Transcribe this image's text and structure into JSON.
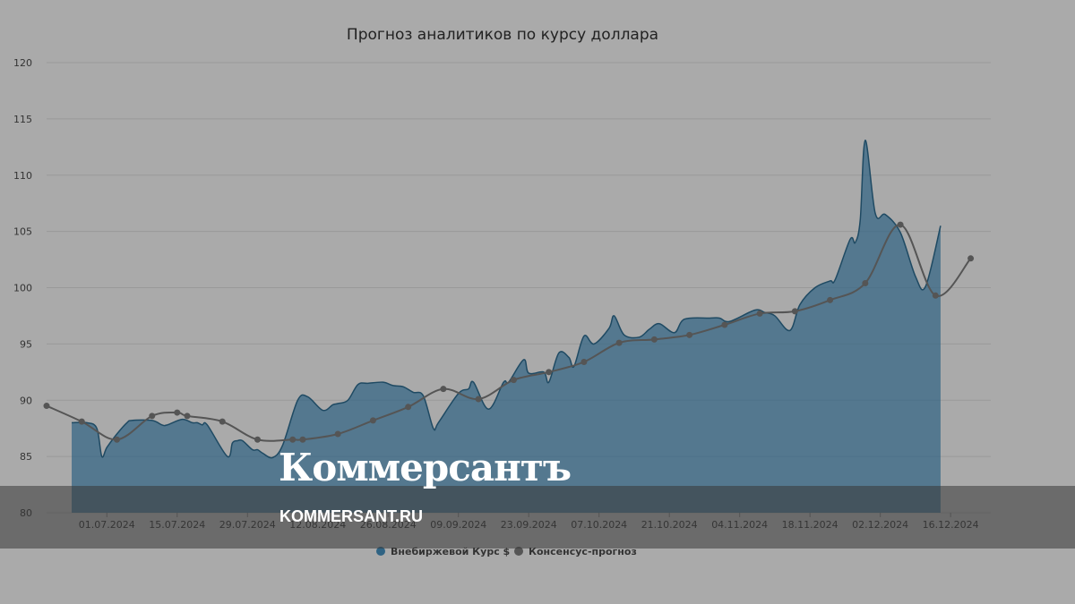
{
  "chart_data": {
    "type": "area",
    "title": "Прогноз аналитиков по курсу доллара",
    "ylim": [
      80,
      120
    ],
    "yticks": [
      80,
      85,
      90,
      95,
      100,
      105,
      110,
      115,
      120
    ],
    "xlim": [
      "2024-06-19",
      "2024-12-24"
    ],
    "xticks": [
      "2024-07-01",
      "2024-07-15",
      "2024-07-29",
      "2024-08-12",
      "2024-08-26",
      "2024-09-09",
      "2024-09-23",
      "2024-10-07",
      "2024-10-21",
      "2024-11-04",
      "2024-11-18",
      "2024-12-02",
      "2024-12-16"
    ],
    "xtick_labels": [
      "01.07.2024",
      "15.07.2024",
      "29.07.2024",
      "12.08.2024",
      "26.08.2024",
      "09.09.2024",
      "23.09.2024",
      "07.10.2024",
      "21.10.2024",
      "04.11.2024",
      "18.11.2024",
      "02.12.2024",
      "16.12.2024"
    ],
    "grid": true,
    "legend_position": "bottom-center",
    "series": [
      {
        "name": "Внебиржевой Курс $",
        "type": "area",
        "color": "#2f6383",
        "x": [
          "2024-06-24",
          "2024-06-27",
          "2024-06-29",
          "2024-06-30",
          "2024-07-01",
          "2024-07-03",
          "2024-07-05",
          "2024-07-06",
          "2024-07-10",
          "2024-07-12",
          "2024-07-13",
          "2024-07-16",
          "2024-07-18",
          "2024-07-19",
          "2024-07-20",
          "2024-07-21",
          "2024-07-25",
          "2024-07-26",
          "2024-07-27",
          "2024-07-28",
          "2024-07-30",
          "2024-07-31",
          "2024-08-01",
          "2024-08-03",
          "2024-08-05",
          "2024-08-08",
          "2024-08-10",
          "2024-08-13",
          "2024-08-15",
          "2024-08-16",
          "2024-08-18",
          "2024-08-20",
          "2024-08-22",
          "2024-08-25",
          "2024-08-27",
          "2024-08-29",
          "2024-08-31",
          "2024-09-02",
          "2024-09-04",
          "2024-09-05",
          "2024-09-09",
          "2024-09-11",
          "2024-09-12",
          "2024-09-15",
          "2024-09-18",
          "2024-09-19",
          "2024-09-22",
          "2024-09-23",
          "2024-09-26",
          "2024-09-27",
          "2024-09-29",
          "2024-10-01",
          "2024-10-02",
          "2024-10-04",
          "2024-10-06",
          "2024-10-09",
          "2024-10-10",
          "2024-10-12",
          "2024-10-15",
          "2024-10-17",
          "2024-10-19",
          "2024-10-22",
          "2024-10-24",
          "2024-10-29",
          "2024-10-31",
          "2024-11-02",
          "2024-11-07",
          "2024-11-09",
          "2024-11-11",
          "2024-11-14",
          "2024-11-16",
          "2024-11-19",
          "2024-11-22",
          "2024-11-23",
          "2024-11-26",
          "2024-11-27",
          "2024-11-28",
          "2024-11-29",
          "2024-12-01",
          "2024-12-03",
          "2024-12-06",
          "2024-12-09",
          "2024-12-11",
          "2024-12-14"
        ],
        "values": [
          88.0,
          88.0,
          87.5,
          85.0,
          85.8,
          87.0,
          88.0,
          88.2,
          88.2,
          87.8,
          87.8,
          88.3,
          88.0,
          88.0,
          87.8,
          87.8,
          85.0,
          86.2,
          86.4,
          86.4,
          85.6,
          85.6,
          85.3,
          84.9,
          86.0,
          90.0,
          90.3,
          89.1,
          89.6,
          89.7,
          90.0,
          91.4,
          91.5,
          91.6,
          91.3,
          91.2,
          90.7,
          90.4,
          87.5,
          88.0,
          90.6,
          91.0,
          91.6,
          89.2,
          91.6,
          91.6,
          93.6,
          92.4,
          92.5,
          91.6,
          94.2,
          93.8,
          93.0,
          95.7,
          95.0,
          96.4,
          97.5,
          95.8,
          95.6,
          96.3,
          96.8,
          96.0,
          97.2,
          97.3,
          97.3,
          97.0,
          98.0,
          97.8,
          97.5,
          96.2,
          98.5,
          100.0,
          100.6,
          100.7,
          104.3,
          104.0,
          106.0,
          113.1,
          106.6,
          106.5,
          104.9,
          101.0,
          100.1,
          105.5
        ]
      },
      {
        "name": "Консенсус-прогноз",
        "type": "line",
        "color": "#555555",
        "x": [
          "2024-06-19",
          "2024-06-26",
          "2024-07-03",
          "2024-07-10",
          "2024-07-15",
          "2024-07-17",
          "2024-07-24",
          "2024-07-31",
          "2024-08-07",
          "2024-08-09",
          "2024-08-16",
          "2024-08-23",
          "2024-08-30",
          "2024-09-06",
          "2024-09-13",
          "2024-09-20",
          "2024-09-27",
          "2024-10-04",
          "2024-10-11",
          "2024-10-18",
          "2024-10-25",
          "2024-11-01",
          "2024-11-08",
          "2024-11-15",
          "2024-11-22",
          "2024-11-29",
          "2024-12-06",
          "2024-12-13",
          "2024-12-20"
        ],
        "values": [
          89.5,
          88.1,
          86.5,
          88.6,
          88.9,
          88.6,
          88.1,
          86.5,
          86.5,
          86.5,
          87.0,
          88.2,
          89.4,
          91.0,
          90.1,
          91.8,
          92.5,
          93.4,
          95.1,
          95.4,
          95.8,
          96.7,
          97.7,
          97.9,
          98.9,
          100.4,
          105.6,
          99.3,
          102.6
        ]
      }
    ]
  },
  "watermark": {
    "logo_text": "Коммерсантъ",
    "url_text": "KOMMERSANT.RU"
  }
}
